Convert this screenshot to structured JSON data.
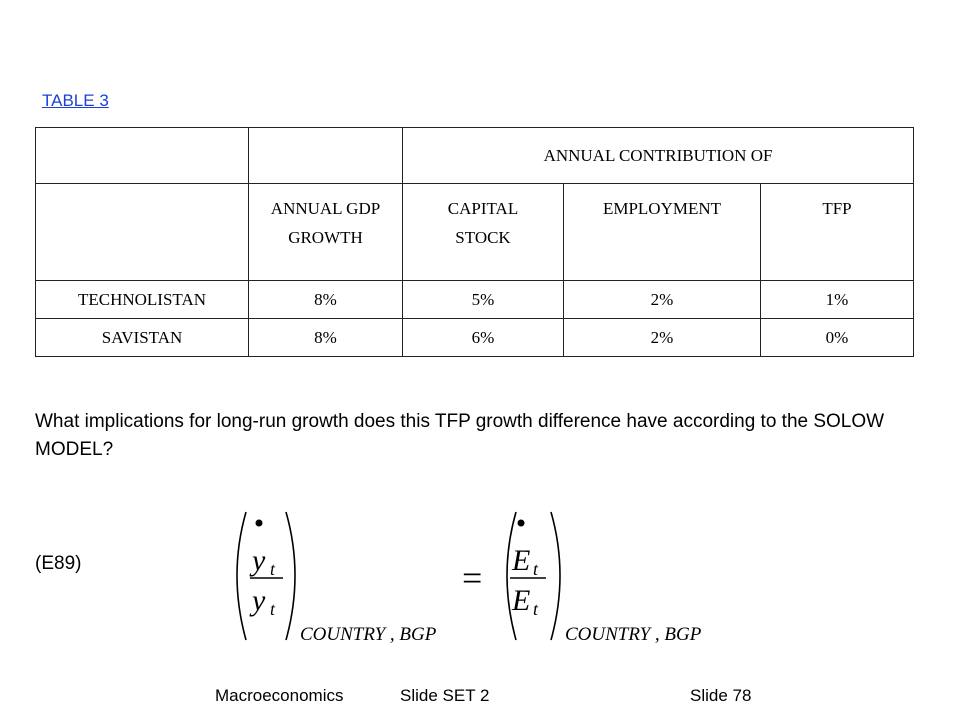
{
  "title": "TABLE 3",
  "table": {
    "group_header": "ANNUAL CONTRIBUTION OF",
    "columns": [
      "ANNUAL GDP GROWTH",
      "CAPITAL STOCK",
      "EMPLOYMENT",
      "TFP"
    ],
    "rows": [
      [
        "TECHNOLISTAN",
        "8%",
        "5%",
        "2%",
        "1%"
      ],
      [
        "SAVISTAN",
        "8%",
        "6%",
        "2%",
        "0%"
      ]
    ]
  },
  "question": "What implications for long-run growth does this TFP growth difference have according to the SOLOW MODEL?",
  "equation": {
    "label": "(E89)",
    "lhs": {
      "var": "y",
      "sub": "t",
      "condition": "COUNTRY , BGP"
    },
    "equals": "=",
    "rhs": {
      "var": "E",
      "sub": "t",
      "condition": "COUNTRY , BGP"
    }
  },
  "footer": {
    "course": "Macroeconomics",
    "set": "Slide SET 2",
    "slide": "Slide 78"
  }
}
